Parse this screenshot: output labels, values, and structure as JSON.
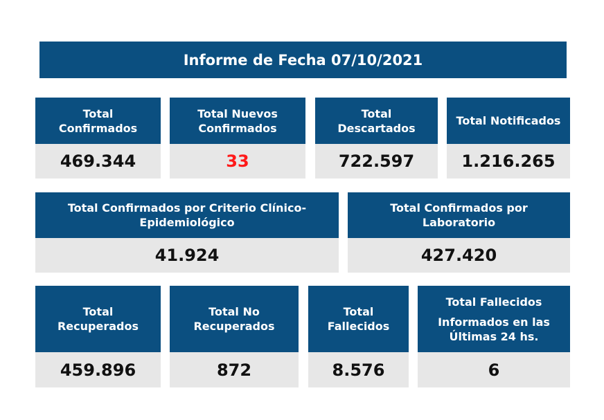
{
  "title": "Informe de Fecha 07/10/2021",
  "row1": [
    {
      "label_line1": "Total",
      "label_line2": "Confirmados",
      "value": "469.344"
    },
    {
      "label_line1": "Total Nuevos",
      "label_line2": "Confirmados",
      "value": "33",
      "value_color": "#ff1a1a"
    },
    {
      "label_line1": "Total",
      "label_line2": "Descartados",
      "value": "722.597"
    },
    {
      "label_line1": "Total Notificados",
      "value": "1.216.265"
    }
  ],
  "row2": [
    {
      "label_line1": "Total Confirmados por Criterio Clínico-",
      "label_line2": "Epidemiológico",
      "value": "41.924"
    },
    {
      "label_line1": "Total Confirmados por",
      "label_line2": "Laboratorio",
      "value": "427.420"
    }
  ],
  "row3": [
    {
      "label_line1": "Total",
      "label_line2": "Recuperados",
      "value": "459.896"
    },
    {
      "label_line1": "Total No",
      "label_line2": "Recuperados",
      "value": "872"
    },
    {
      "label_line1": "Total",
      "label_line2": "Fallecidos",
      "value": "8.576"
    },
    {
      "label_line1": "Total Fallecidos",
      "label_line2": "Informados en las",
      "label_line3": "Últimas 24 hs.",
      "value": "6"
    }
  ],
  "colors": {
    "header_bg": "#0b4f80",
    "value_bg": "#e7e7e7",
    "highlight": "#ff1a1a"
  }
}
